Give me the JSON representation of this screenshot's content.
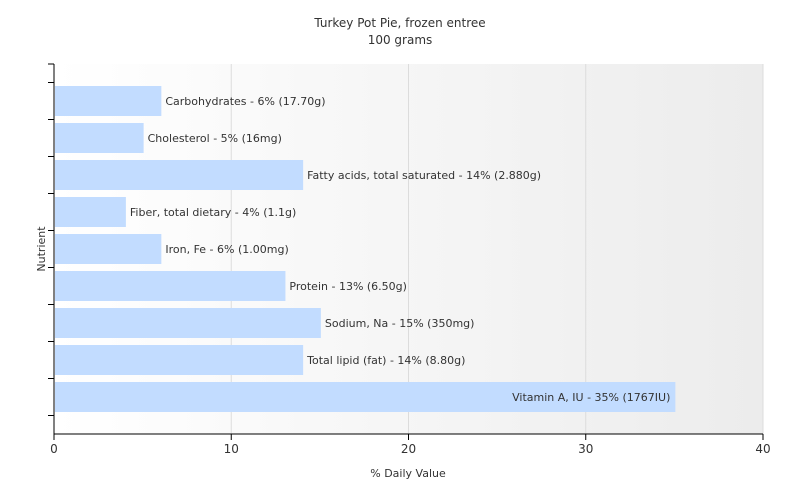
{
  "chart_data": {
    "type": "bar",
    "orientation": "horizontal",
    "title": "Turkey Pot Pie, frozen entree",
    "subtitle": "100 grams",
    "xlabel": "% Daily Value",
    "ylabel": "Nutrient",
    "xlim": [
      0,
      40
    ],
    "x_ticks": [
      0,
      10,
      20,
      30,
      40
    ],
    "grid": true,
    "legend": "none",
    "bar_color": "#c2dcff",
    "categories": [
      "Carbohydrates",
      "Cholesterol",
      "Fatty acids, total saturated",
      "Fiber, total dietary",
      "Iron, Fe",
      "Protein",
      "Sodium, Na",
      "Total lipid (fat)",
      "Vitamin A, IU"
    ],
    "values": [
      6,
      5,
      14,
      4,
      6,
      13,
      15,
      14,
      35
    ],
    "data_labels": [
      "Carbohydrates - 6% (17.70g)",
      "Cholesterol - 5% (16mg)",
      "Fatty acids, total saturated - 14% (2.880g)",
      "Fiber, total dietary - 4% (1.1g)",
      "Iron, Fe - 6% (1.00mg)",
      "Protein - 13% (6.50g)",
      "Sodium, Na - 15% (350mg)",
      "Total lipid (fat) - 14% (8.80g)",
      "Vitamin A, IU - 35% (1767IU)"
    ]
  }
}
